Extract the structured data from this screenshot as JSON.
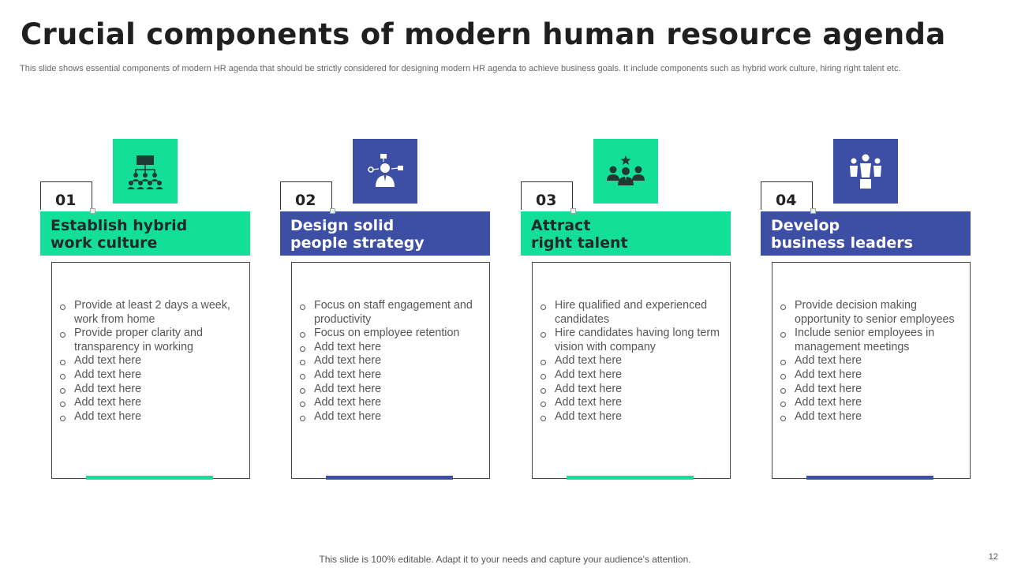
{
  "title": "Crucial components of modern human resource agenda",
  "subtitle": "This slide shows essential components of modern HR agenda that should be strictly considered for designing modern HR agenda to achieve business goals. It include components such as hybrid work culture, hiring right talent etc.",
  "colors": {
    "green": "#13df99",
    "blue": "#3d4fa5"
  },
  "cards": [
    {
      "number": "01",
      "heading_line1": "Establish hybrid",
      "heading_line2": "work culture",
      "icon": "hierarchy-team-icon",
      "bullets": [
        "Provide at least 2 days a week, work from home",
        "Provide proper clarity and transparency in working",
        "Add text here",
        "Add text here",
        "Add text here",
        "Add text here",
        "Add text here"
      ]
    },
    {
      "number": "02",
      "heading_line1": "Design solid",
      "heading_line2": "people strategy",
      "icon": "businessman-network-icon",
      "bullets": [
        "Focus on staff engagement and productivity",
        "Focus on employee retention",
        "Add text here",
        "Add text here",
        "Add text here",
        "Add text here",
        "Add text here",
        "Add text here"
      ]
    },
    {
      "number": "03",
      "heading_line1": "Attract",
      "heading_line2": "right talent",
      "icon": "star-talent-group-icon",
      "bullets": [
        "Hire qualified and experienced candidates",
        "Hire candidates having long term vision with company",
        "Add text here",
        "Add text here",
        "Add text here",
        "Add text here",
        "Add text here"
      ]
    },
    {
      "number": "04",
      "heading_line1": "Develop",
      "heading_line2": "business leaders",
      "icon": "leader-podium-icon",
      "bullets": [
        "Provide decision making opportunity to senior employees",
        "Include senior employees in management meetings",
        "Add text here",
        "Add text here",
        "Add text here",
        "Add text here",
        "Add text here"
      ]
    }
  ],
  "footer": "This slide is 100% editable. Adapt it to your needs and capture your audience's attention.",
  "page_number": "12"
}
